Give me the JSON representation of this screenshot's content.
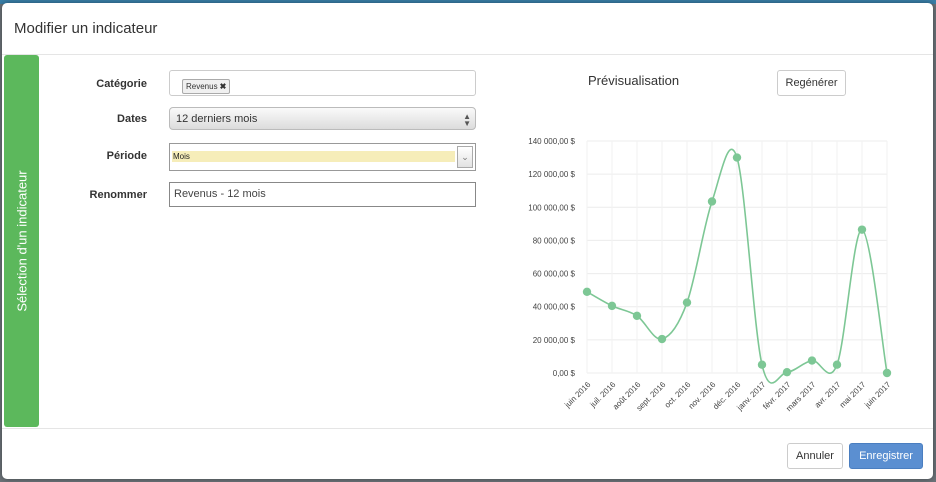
{
  "modal": {
    "title": "Modifier un indicateur",
    "side_tab": "Sélection d'un indicateur"
  },
  "form": {
    "categorie_label": "Catégorie",
    "categorie_tag": "Revenus",
    "categorie_tag_remove": "✖",
    "dates_label": "Dates",
    "dates_value": "12 derniers mois",
    "periode_label": "Période",
    "periode_value": "Mois",
    "renommer_label": "Renommer",
    "renommer_value": "Revenus - 12 mois"
  },
  "preview": {
    "title": "Prévisualisation",
    "regenerate_label": "Regénérer"
  },
  "footer": {
    "cancel_label": "Annuler",
    "save_label": "Enregistrer"
  },
  "colors": {
    "accent_green": "#5cb85c",
    "series_green": "#7dc795",
    "primary_blue": "#5b8fd1"
  },
  "chart_data": {
    "type": "line",
    "categories": [
      "juin 2016",
      "juil. 2016",
      "août 2016",
      "sept. 2016",
      "oct. 2016",
      "nov. 2016",
      "déc. 2016",
      "janv. 2017",
      "févr. 2017",
      "mars 2017",
      "avr. 2017",
      "mai 2017",
      "juin 2017"
    ],
    "series": [
      {
        "values": [
          49000,
          40500,
          34500,
          20500,
          42500,
          103500,
          130000,
          5000,
          500,
          7500,
          5000,
          86500,
          0
        ]
      }
    ],
    "ylim": [
      0,
      140000
    ],
    "yticks": [
      "0,00 $",
      "20 000,00 $",
      "40 000,00 $",
      "60 000,00 $",
      "80 000,00 $",
      "100 000,00 $",
      "120 000,00 $",
      "140 000,00 $"
    ],
    "grid": true,
    "smooth": true
  }
}
